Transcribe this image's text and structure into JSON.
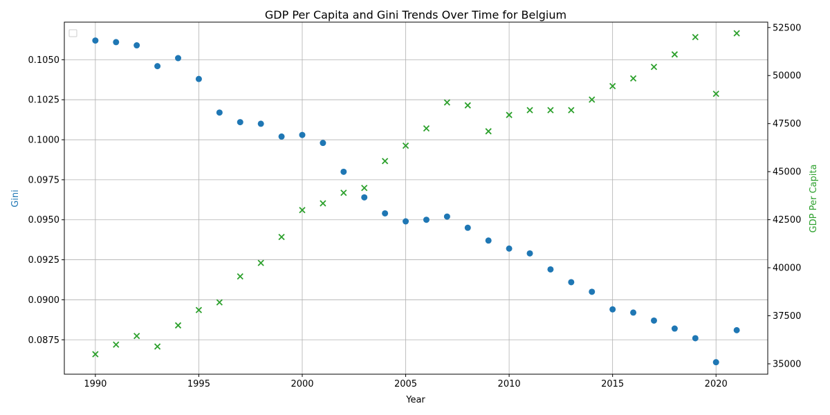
{
  "chart_data": {
    "type": "scatter",
    "title": "GDP Per Capita and Gini Trends Over Time for Belgium",
    "xlabel": "Year",
    "xlim": [
      1988.5,
      2022.5
    ],
    "xticks": [
      1990,
      1995,
      2000,
      2005,
      2010,
      2015,
      2020
    ],
    "grid": true,
    "legend": "top-left, empty",
    "left_axis": {
      "label": "Gini",
      "color": "#1f77b4",
      "ylim": [
        0.08535,
        0.10735
      ],
      "ticks": [
        "0.0875",
        "0.0900",
        "0.0925",
        "0.0950",
        "0.0975",
        "0.1000",
        "0.1025",
        "0.1050"
      ]
    },
    "right_axis": {
      "label": "GDP Per Capita",
      "color": "#2ca02c",
      "ylim": [
        34460,
        52780
      ],
      "ticks": [
        "35000",
        "37500",
        "40000",
        "42500",
        "45000",
        "47500",
        "50000",
        "52500"
      ]
    },
    "series": [
      {
        "axis": "left",
        "marker": "circle",
        "color": "#1f77b4",
        "x": [
          1990,
          1991,
          1992,
          1993,
          1994,
          1995,
          1996,
          1997,
          1998,
          1999,
          2000,
          2001,
          2002,
          2003,
          2004,
          2005,
          2006,
          2007,
          2008,
          2009,
          2010,
          2011,
          2012,
          2013,
          2014,
          2015,
          2016,
          2017,
          2018,
          2019,
          2020,
          2021
        ],
        "values": [
          0.1062,
          0.1061,
          0.1059,
          0.1046,
          0.1051,
          0.1038,
          0.1017,
          0.1011,
          0.101,
          0.1002,
          0.1003,
          0.0998,
          0.098,
          0.0964,
          0.0954,
          0.0949,
          0.095,
          0.0952,
          0.0945,
          0.0937,
          0.0932,
          0.0929,
          0.0919,
          0.0911,
          0.0905,
          0.0894,
          0.0892,
          0.0887,
          0.0882,
          0.0876,
          0.0861,
          0.0881
        ]
      },
      {
        "axis": "right",
        "marker": "x",
        "color": "#2ca02c",
        "x": [
          1990,
          1991,
          1992,
          1993,
          1994,
          1995,
          1996,
          1997,
          1998,
          1999,
          2000,
          2001,
          2002,
          2003,
          2004,
          2005,
          2006,
          2007,
          2008,
          2009,
          2010,
          2011,
          2012,
          2013,
          2014,
          2015,
          2016,
          2017,
          2018,
          2019,
          2020,
          2021
        ],
        "values": [
          35500,
          36000,
          36450,
          35900,
          37000,
          37800,
          38200,
          39550,
          40250,
          41600,
          43000,
          43350,
          43900,
          44150,
          45550,
          46350,
          47250,
          48600,
          48450,
          47100,
          47950,
          48200,
          48200,
          48200,
          48750,
          49450,
          49850,
          50450,
          51100,
          52000,
          49050,
          52200
        ]
      }
    ]
  }
}
